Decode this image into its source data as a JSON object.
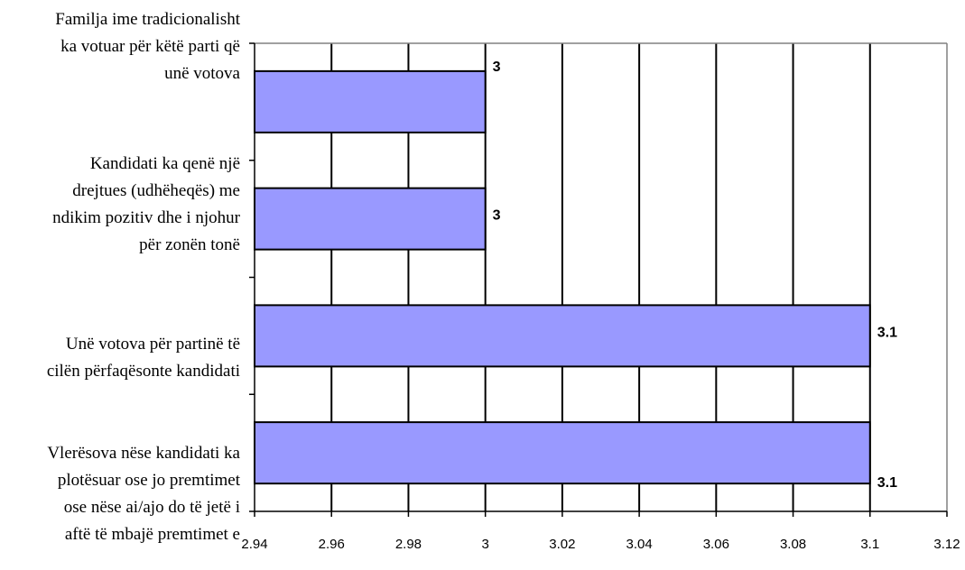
{
  "chart_data": {
    "type": "bar",
    "orientation": "horizontal",
    "categories": [
      "Familja ime tradicionalisht ka votuar për këtë parti që unë votova",
      "Kandidati ka qenë një drejtues (udhëheqës) me ndikim pozitiv dhe i njohur për zonën tonë",
      "Unë votova për partinë të cilën përfaqësonte kandidati",
      "Vlerësova nëse kandidati ka plotësuar ose jo premtimet ose nëse ai/ajo do të jetë i aftë të mbajë premtimet e"
    ],
    "category_lines": [
      [
        "Familja ime tradicionalisht",
        "ka votuar për këtë parti që",
        "unë votova"
      ],
      [
        "Kandidati ka qenë një",
        "drejtues (udhëheqës) me",
        "ndikim pozitiv dhe i njohur",
        "për zonën tonë"
      ],
      [
        "Unë votova për partinë të",
        "cilën përfaqësonte kandidati"
      ],
      [
        "Vlerësova nëse kandidati ka",
        "plotësuar ose jo premtimet",
        "ose nëse ai/ajo do të jetë i",
        "aftë të mbajë premtimet e"
      ]
    ],
    "values": [
      3,
      3,
      3.1,
      3.1
    ],
    "data_labels": [
      "3",
      "3",
      "3.1",
      "3.1"
    ],
    "xlim": [
      2.94,
      3.12
    ],
    "x_ticks": [
      "2.94",
      "2.96",
      "2.98",
      "3",
      "3.02",
      "3.04",
      "3.06",
      "3.08",
      "3.1",
      "3.12"
    ],
    "title": "",
    "xlabel": "",
    "ylabel": "",
    "grid": true,
    "legend": "none",
    "bar_color": "#9999ff",
    "bar_edge_color": "#000000",
    "grid_color": "#000000",
    "axis_color": "#808080"
  }
}
